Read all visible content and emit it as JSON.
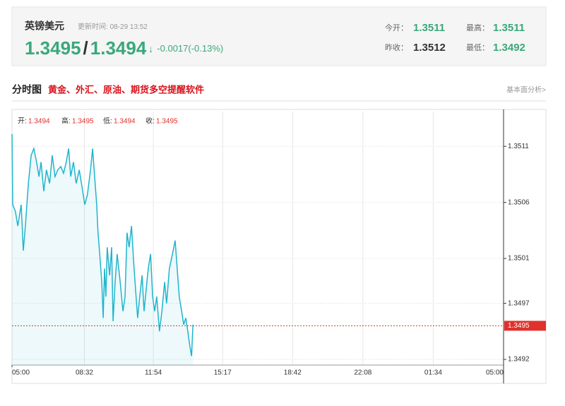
{
  "header": {
    "title": "英镑美元",
    "update_label": "更新时间:",
    "update_time": "08-29 13:52",
    "bid": "1.3495",
    "sep": "/",
    "ask": "1.3494",
    "arrow": "↓",
    "change": "-0.0017(-0.13%)",
    "stats": [
      {
        "label": "今开：",
        "value": "1.3511"
      },
      {
        "label": "最高：",
        "value": "1.3511"
      },
      {
        "label": "昨收：",
        "value": "1.3512"
      },
      {
        "label": "最低：",
        "value": "1.3492"
      }
    ]
  },
  "section": {
    "title": "分时图",
    "promo": "黄金、外汇、原油、期货多空提醒软件",
    "link": "基本面分析>"
  },
  "chart_data": {
    "type": "line",
    "legend": [
      {
        "label": "开:",
        "value": 1.3494
      },
      {
        "label": "高:",
        "value": 1.3495
      },
      {
        "label": "低:",
        "value": 1.3494
      },
      {
        "label": "收:",
        "value": 1.3495
      }
    ],
    "x": [
      0,
      2,
      10,
      17,
      27,
      33,
      39,
      48,
      56,
      64,
      72,
      79,
      85,
      93,
      101,
      110,
      118,
      126,
      134,
      143,
      151,
      159,
      166,
      172,
      180,
      188,
      197,
      205,
      213,
      221,
      230,
      236,
      242,
      248,
      252,
      257,
      263,
      267,
      271,
      275,
      279,
      286,
      292,
      296,
      302,
      308,
      317,
      325,
      331,
      337,
      343,
      350,
      356,
      362,
      368,
      374,
      381,
      387,
      393,
      399,
      406,
      412,
      418,
      424,
      432,
      439,
      447,
      453,
      461,
      470,
      478,
      484,
      490,
      497,
      503,
      509,
      515,
      521,
      526,
      530
    ],
    "series": [
      {
        "color": "#1fb5cc",
        "values": [
          1.35121,
          1.35058,
          1.35052,
          1.35039,
          1.35058,
          1.35017,
          1.35039,
          1.35077,
          1.35102,
          1.35108,
          1.35096,
          1.35083,
          1.35096,
          1.3507,
          1.35089,
          1.35077,
          1.35102,
          1.35083,
          1.35089,
          1.35092,
          1.35086,
          1.35096,
          1.35108,
          1.35083,
          1.35096,
          1.35077,
          1.35089,
          1.35074,
          1.35058,
          1.35067,
          1.35089,
          1.35108,
          1.35083,
          1.35058,
          1.35033,
          1.35014,
          1.34989,
          1.34957,
          1.35001,
          1.34976,
          1.3502,
          1.34995,
          1.3502,
          1.34954,
          1.34989,
          1.35014,
          1.34989,
          1.34963,
          1.34976,
          1.35033,
          1.3502,
          1.35039,
          1.35008,
          1.34982,
          1.34957,
          1.34976,
          1.34995,
          1.34963,
          1.34982,
          1.35001,
          1.35014,
          1.34976,
          1.34963,
          1.34976,
          1.34945,
          1.34963,
          1.34989,
          1.3497,
          1.35001,
          1.35014,
          1.35026,
          1.35001,
          1.34976,
          1.34963,
          1.34951,
          1.34957,
          1.34945,
          1.34932,
          1.34923,
          1.34951
        ]
      }
    ],
    "xlim": [
      0,
      1440
    ],
    "xticks": [
      {
        "value": 0,
        "label": "05:00"
      },
      {
        "value": 212,
        "label": "08:32"
      },
      {
        "value": 414,
        "label": "11:54"
      },
      {
        "value": 617,
        "label": "15:17"
      },
      {
        "value": 822,
        "label": "18:42"
      },
      {
        "value": 1028,
        "label": "22:08"
      },
      {
        "value": 1234,
        "label": "01:34"
      },
      {
        "value": 1440,
        "label": "05:00"
      }
    ],
    "ylim": [
      1.34915,
      1.35141
    ],
    "yticks": [
      1.3492,
      1.3497,
      1.3501,
      1.3506,
      1.3511
    ],
    "ref_line": {
      "value": 1.3495,
      "color": "#e0312b"
    },
    "grid": true
  }
}
